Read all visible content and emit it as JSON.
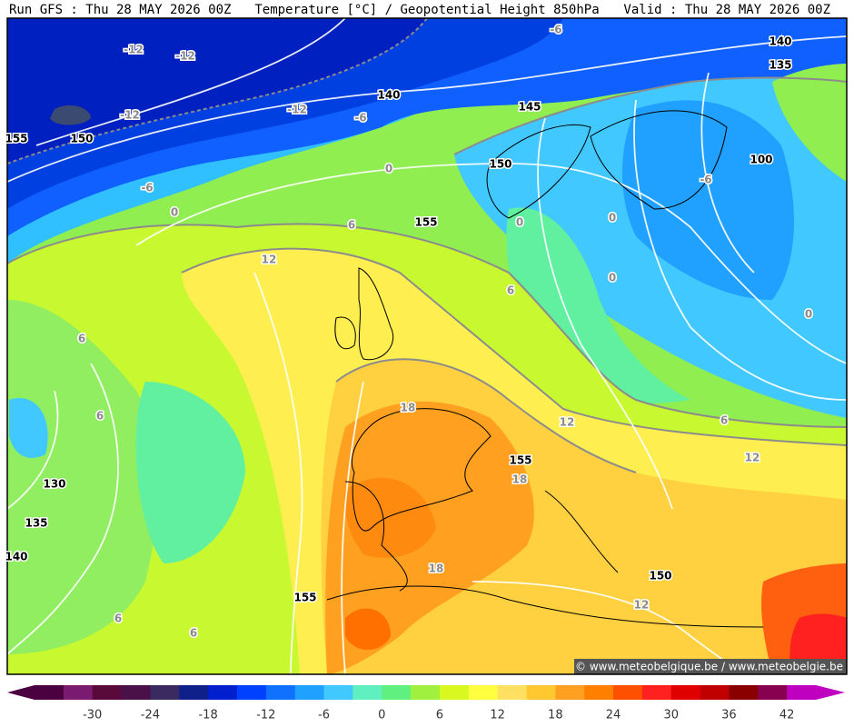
{
  "header": {
    "run": "Run GFS : Thu 28 MAY 2026 00Z",
    "title": "Temperature [°C] / Geopotential Height 850hPa",
    "valid": "Valid : Thu 28 MAY 2026 00Z"
  },
  "temperature_labels": [
    -12,
    -12,
    -12,
    -12,
    -6,
    -6,
    -6,
    -6,
    0,
    0,
    0,
    0,
    0,
    0,
    6,
    6,
    6,
    6,
    6,
    6,
    6,
    12,
    12,
    12,
    12,
    18,
    18,
    18
  ],
  "height_labels": [
    140,
    135,
    140,
    145,
    155,
    150,
    150,
    155,
    100,
    130,
    135,
    140,
    155,
    150,
    155
  ],
  "credit": "© www.meteobelgique.be / www.meteobelgie.be",
  "colorbar": {
    "lim": [
      -36,
      45
    ],
    "ticks": [
      -30,
      -24,
      -18,
      -12,
      -6,
      0,
      6,
      12,
      18,
      24,
      30,
      36,
      42
    ],
    "colors": [
      "#4b0040",
      "#7a1a70",
      "#5a0a3a",
      "#4a1048",
      "#3a2a60",
      "#10208a",
      "#0020d0",
      "#0040ff",
      "#1070ff",
      "#20a0ff",
      "#40c8ff",
      "#60f0c0",
      "#60f080",
      "#a0f040",
      "#d8f820",
      "#ffff40",
      "#ffe060",
      "#ffc830",
      "#ffa020",
      "#ff8000",
      "#ff5000",
      "#ff2020",
      "#e00000",
      "#c00000",
      "#8a0000",
      "#880050",
      "#c000c0"
    ]
  }
}
